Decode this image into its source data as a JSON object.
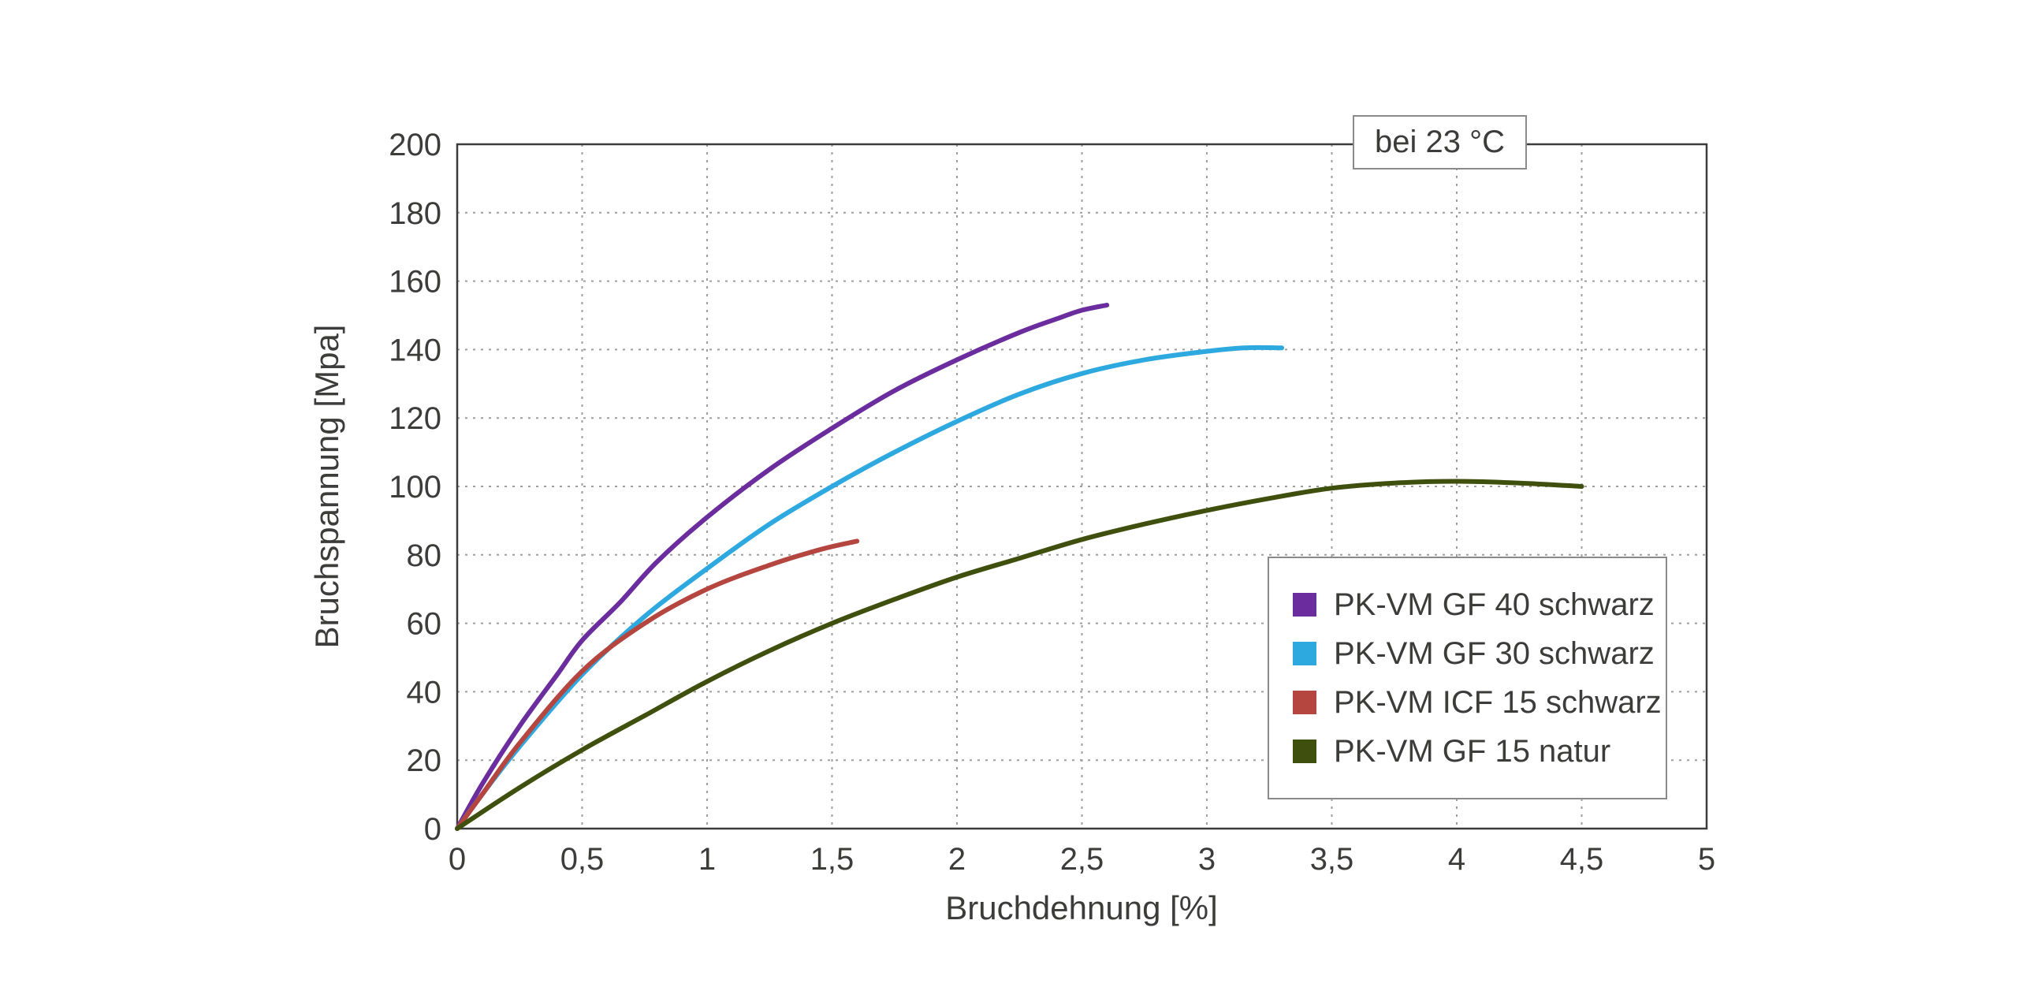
{
  "chart_data": {
    "type": "line",
    "title": "",
    "xlabel": "Bruchdehnung [%]",
    "ylabel": "Bruchspannung [Mpa]",
    "annotation": "bei 23 °C",
    "xlim": [
      0,
      5
    ],
    "ylim": [
      0,
      200
    ],
    "x_ticks": [
      0,
      0.5,
      1,
      1.5,
      2,
      2.5,
      3,
      3.5,
      4,
      4.5,
      5
    ],
    "x_tick_labels": [
      "0",
      "0,5",
      "1",
      "1,5",
      "2",
      "2,5",
      "3",
      "3,5",
      "4",
      "4,5",
      "5"
    ],
    "y_ticks": [
      0,
      20,
      40,
      60,
      80,
      100,
      120,
      140,
      160,
      180,
      200
    ],
    "y_tick_labels": [
      "0",
      "20",
      "40",
      "60",
      "80",
      "100",
      "120",
      "140",
      "160",
      "180",
      "200"
    ],
    "grid": true,
    "legend_position": "right-middle",
    "colors": {
      "axis": "#3c3c3b",
      "grid": "#9d9d9c",
      "text": "#3c3c3b",
      "box_border": "#8a8a8a"
    },
    "series": [
      {
        "name": "PK-VM GF 40 schwarz",
        "color": "#6b2d9e",
        "points": [
          [
            0,
            0
          ],
          [
            0.1,
            13
          ],
          [
            0.25,
            30
          ],
          [
            0.4,
            45
          ],
          [
            0.5,
            55
          ],
          [
            0.65,
            66
          ],
          [
            0.8,
            78
          ],
          [
            1,
            91
          ],
          [
            1.25,
            105
          ],
          [
            1.5,
            117
          ],
          [
            1.75,
            128
          ],
          [
            2,
            137
          ],
          [
            2.25,
            145
          ],
          [
            2.4,
            149
          ],
          [
            2.5,
            151.5
          ],
          [
            2.6,
            153
          ]
        ]
      },
      {
        "name": "PK-VM GF 30 schwarz",
        "color": "#2ea9e0",
        "points": [
          [
            0,
            0
          ],
          [
            0.1,
            10
          ],
          [
            0.25,
            24
          ],
          [
            0.5,
            45
          ],
          [
            0.75,
            62
          ],
          [
            1,
            76
          ],
          [
            1.25,
            89
          ],
          [
            1.5,
            100
          ],
          [
            1.75,
            110
          ],
          [
            2,
            119
          ],
          [
            2.25,
            127
          ],
          [
            2.5,
            133
          ],
          [
            2.75,
            137
          ],
          [
            3,
            139.5
          ],
          [
            3.15,
            140.5
          ],
          [
            3.3,
            140.5
          ]
        ]
      },
      {
        "name": "PK-VM ICF 15 schwarz",
        "color": "#b4453f",
        "points": [
          [
            0,
            0
          ],
          [
            0.1,
            10
          ],
          [
            0.25,
            25
          ],
          [
            0.5,
            46
          ],
          [
            0.75,
            60
          ],
          [
            1,
            70
          ],
          [
            1.25,
            77
          ],
          [
            1.45,
            81.5
          ],
          [
            1.6,
            84
          ]
        ]
      },
      {
        "name": "PK-VM GF 15 natur",
        "color": "#3f500e",
        "points": [
          [
            0,
            0
          ],
          [
            0.25,
            12
          ],
          [
            0.5,
            23
          ],
          [
            0.75,
            33
          ],
          [
            1,
            43
          ],
          [
            1.25,
            52
          ],
          [
            1.5,
            60
          ],
          [
            1.75,
            67
          ],
          [
            2,
            73.5
          ],
          [
            2.25,
            79
          ],
          [
            2.5,
            84.5
          ],
          [
            2.75,
            89
          ],
          [
            3,
            93
          ],
          [
            3.25,
            96.5
          ],
          [
            3.5,
            99.5
          ],
          [
            3.75,
            101
          ],
          [
            4,
            101.5
          ],
          [
            4.25,
            101
          ],
          [
            4.5,
            100
          ]
        ]
      }
    ]
  }
}
